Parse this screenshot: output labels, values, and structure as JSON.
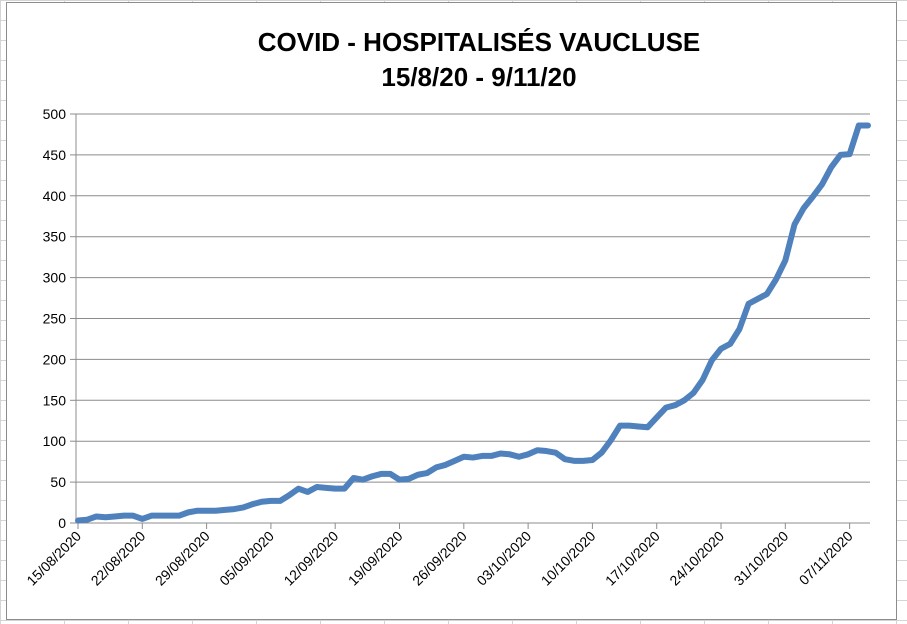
{
  "chart_data": {
    "type": "line",
    "title": "COVID - HOSPITALISÉS VAUCLUSE",
    "subtitle": "15/8/20 - 9/11/20",
    "xlabel": "",
    "ylabel": "",
    "ylim": [
      0,
      500
    ],
    "yticks": [
      "0",
      "50",
      "100",
      "150",
      "200",
      "250",
      "300",
      "350",
      "400",
      "450",
      "500"
    ],
    "xtick_labels": [
      "15/08/2020",
      "22/08/2020",
      "29/08/2020",
      "05/09/2020",
      "12/09/2020",
      "19/09/2020",
      "26/09/2020",
      "03/10/2020",
      "10/10/2020",
      "17/10/2020",
      "24/10/2020",
      "31/10/2020",
      "07/11/2020"
    ],
    "grid": true,
    "legend": "none",
    "line_color": "#4f81bd",
    "series": [
      {
        "x": [
          "15/08/2020",
          "16/08/2020",
          "17/08/2020",
          "18/08/2020",
          "19/08/2020",
          "20/08/2020",
          "21/08/2020",
          "22/08/2020",
          "23/08/2020",
          "24/08/2020",
          "25/08/2020",
          "26/08/2020",
          "27/08/2020",
          "28/08/2020",
          "29/08/2020",
          "30/08/2020",
          "31/08/2020",
          "01/09/2020",
          "02/09/2020",
          "03/09/2020",
          "04/09/2020",
          "05/09/2020",
          "06/09/2020",
          "07/09/2020",
          "08/09/2020",
          "09/09/2020",
          "10/09/2020",
          "11/09/2020",
          "12/09/2020",
          "13/09/2020",
          "14/09/2020",
          "15/09/2020",
          "16/09/2020",
          "17/09/2020",
          "18/09/2020",
          "19/09/2020",
          "20/09/2020",
          "21/09/2020",
          "22/09/2020",
          "23/09/2020",
          "24/09/2020",
          "25/09/2020",
          "26/09/2020",
          "27/09/2020",
          "28/09/2020",
          "29/09/2020",
          "30/09/2020",
          "01/10/2020",
          "02/10/2020",
          "03/10/2020",
          "04/10/2020",
          "05/10/2020",
          "06/10/2020",
          "07/10/2020",
          "08/10/2020",
          "09/10/2020",
          "10/10/2020",
          "11/10/2020",
          "12/10/2020",
          "13/10/2020",
          "14/10/2020",
          "15/10/2020",
          "16/10/2020",
          "17/10/2020",
          "18/10/2020",
          "19/10/2020",
          "20/10/2020",
          "21/10/2020",
          "22/10/2020",
          "23/10/2020",
          "24/10/2020",
          "25/10/2020",
          "26/10/2020",
          "27/10/2020",
          "28/10/2020",
          "29/10/2020",
          "30/10/2020",
          "31/10/2020",
          "01/11/2020",
          "02/11/2020",
          "03/11/2020",
          "04/11/2020",
          "05/11/2020",
          "06/11/2020",
          "07/11/2020",
          "08/11/2020",
          "09/11/2020"
        ],
        "values": [
          3,
          4,
          8,
          7,
          8,
          9,
          9,
          5,
          9,
          9,
          9,
          9,
          13,
          15,
          15,
          15,
          16,
          17,
          19,
          23,
          26,
          27,
          27,
          34,
          42,
          38,
          44,
          43,
          42,
          42,
          55,
          53,
          57,
          60,
          60,
          53,
          54,
          59,
          61,
          68,
          71,
          76,
          81,
          80,
          82,
          82,
          85,
          84,
          81,
          84,
          89,
          88,
          86,
          78,
          76,
          76,
          77,
          86,
          101,
          119,
          119,
          118,
          117,
          129,
          141,
          144,
          150,
          159,
          175,
          199,
          213,
          219,
          237,
          268,
          274,
          280,
          298,
          321,
          365,
          385,
          399,
          414,
          435,
          450,
          451,
          486,
          486
        ]
      }
    ]
  }
}
